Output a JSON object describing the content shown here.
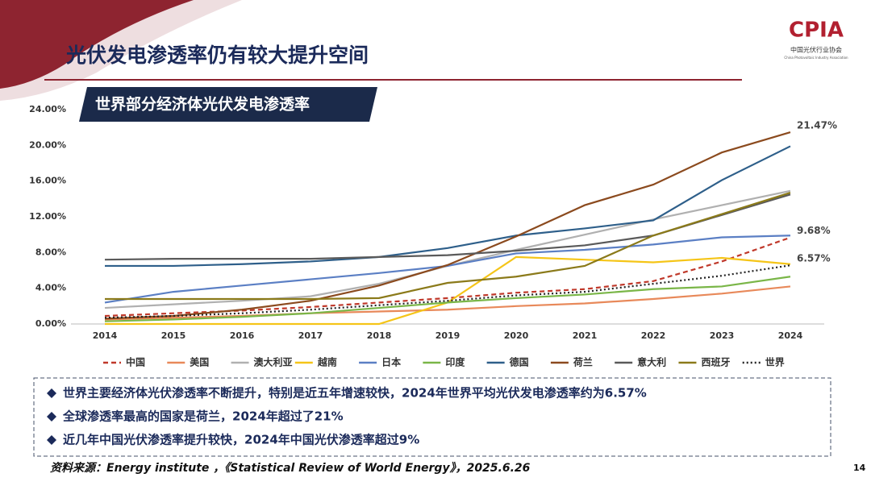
{
  "slide": {
    "title": "光伏发电渗透率仍有较大提升空间",
    "logo": "CPIA",
    "logo_cn": "中国光伏行业协会",
    "logo_en": "China Photovoltaic Industry Association",
    "bullets": [
      "世界主要经济体光伏渗透率不断提升，特别是近五年增速较快，2024年世界平均光伏发电渗透率约为6.57%",
      "全球渗透率最高的国家是荷兰，2024年超过了21%",
      "近几年中国光伏渗透率提升较快，2024年中国光伏渗透率超过9%"
    ],
    "source": "资料来源：Energy institute ，《Statistical Review of World Energy》，2025.6.26",
    "page": "14"
  },
  "chart_data": {
    "type": "line",
    "title": "世界部分经济体光伏发电渗透率",
    "categories": [
      "2014",
      "2015",
      "2016",
      "2017",
      "2018",
      "2019",
      "2020",
      "2021",
      "2022",
      "2023",
      "2024"
    ],
    "ylim": [
      0,
      24
    ],
    "yticks": [
      {
        "value": 0,
        "label": "0.00%"
      },
      {
        "value": 4,
        "label": "4.00%"
      },
      {
        "value": 8,
        "label": "8.00%"
      },
      {
        "value": 12,
        "label": "12.00%"
      },
      {
        "value": 16,
        "label": "16.00%"
      },
      {
        "value": 20,
        "label": "20.00%"
      },
      {
        "value": 24,
        "label": "24.00%"
      }
    ],
    "grid": false,
    "legend": "bottom",
    "series": [
      {
        "name": "中国",
        "color": "#c0392b",
        "dash": "dashed",
        "values": [
          0.9,
          1.2,
          1.5,
          1.9,
          2.4,
          2.9,
          3.5,
          3.9,
          4.8,
          7.0,
          9.68
        ],
        "value_labels": [
          null,
          null,
          null,
          null,
          null,
          null,
          null,
          null,
          null,
          null,
          "9.68%"
        ]
      },
      {
        "name": "美国",
        "color": "#e8895a",
        "values": [
          0.5,
          0.7,
          0.9,
          1.2,
          1.4,
          1.6,
          2.0,
          2.3,
          2.8,
          3.4,
          4.2
        ]
      },
      {
        "name": "澳大利亚",
        "color": "#b0b0b0",
        "values": [
          1.8,
          2.2,
          2.6,
          3.1,
          4.5,
          6.5,
          8.3,
          10.0,
          11.7,
          13.3,
          14.9
        ]
      },
      {
        "name": "越南",
        "color": "#f5c518",
        "values": [
          0,
          0,
          0,
          0,
          0,
          2.4,
          7.5,
          7.2,
          6.9,
          7.4,
          6.7
        ]
      },
      {
        "name": "日本",
        "color": "#5b7fc4",
        "values": [
          2.4,
          3.6,
          4.3,
          5.0,
          5.7,
          6.5,
          7.9,
          8.3,
          8.9,
          9.7,
          9.9
        ]
      },
      {
        "name": "印度",
        "color": "#7ab648",
        "values": [
          0.3,
          0.5,
          0.8,
          1.2,
          1.8,
          2.4,
          2.9,
          3.3,
          3.9,
          4.2,
          5.3
        ]
      },
      {
        "name": "德国",
        "color": "#2e5f8a",
        "values": [
          6.5,
          6.5,
          6.7,
          7.0,
          7.5,
          8.5,
          9.9,
          10.7,
          11.6,
          16.1,
          19.9
        ]
      },
      {
        "name": "荷兰",
        "color": "#8b4a1e",
        "values": [
          0.6,
          0.9,
          1.6,
          2.6,
          4.3,
          6.6,
          9.8,
          13.3,
          15.6,
          19.2,
          21.47
        ],
        "value_labels": [
          null,
          null,
          null,
          null,
          null,
          null,
          null,
          null,
          null,
          null,
          "21.47%"
        ]
      },
      {
        "name": "意大利",
        "color": "#5a5a5a",
        "values": [
          7.2,
          7.3,
          7.3,
          7.3,
          7.5,
          7.7,
          8.2,
          8.8,
          9.9,
          12.2,
          14.5
        ]
      },
      {
        "name": "西班牙",
        "color": "#8b7a1a",
        "values": [
          2.8,
          2.8,
          2.8,
          2.8,
          2.9,
          4.6,
          5.3,
          6.5,
          9.9,
          12.3,
          14.7
        ]
      },
      {
        "name": "世界",
        "color": "#222222",
        "dash": "dotted",
        "values": [
          0.7,
          0.9,
          1.2,
          1.6,
          2.1,
          2.6,
          3.2,
          3.6,
          4.5,
          5.4,
          6.57
        ],
        "value_labels": [
          null,
          null,
          null,
          null,
          null,
          null,
          null,
          null,
          null,
          null,
          "6.57%"
        ]
      }
    ]
  }
}
